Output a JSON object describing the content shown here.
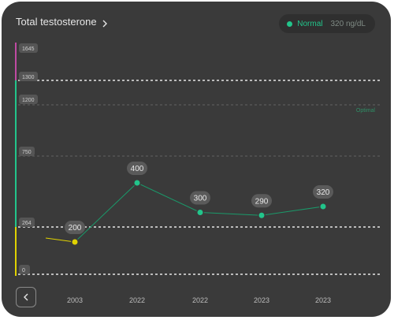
{
  "header": {
    "title": "Total testosterone",
    "status_label": "Normal",
    "status_value": "320 ng/dL"
  },
  "icons": {
    "title_chevron": "chevron-right-icon",
    "back": "chevron-left-icon"
  },
  "colors": {
    "normal": "#22c58b",
    "low": "#e0d200",
    "high": "#c04aa3",
    "line": "#1a9a6a"
  },
  "chart_data": {
    "type": "line",
    "x": [
      "2003",
      "2022",
      "2022",
      "2023",
      "2023"
    ],
    "values": [
      200,
      400,
      300,
      290,
      320
    ],
    "value_labels": [
      "200",
      "400",
      "300",
      "290",
      "320"
    ],
    "y_ticks": [
      "1645",
      "1300",
      "1200",
      "750",
      "264",
      "0"
    ],
    "zone_label": "Optimal",
    "unit": "ng/dL"
  }
}
